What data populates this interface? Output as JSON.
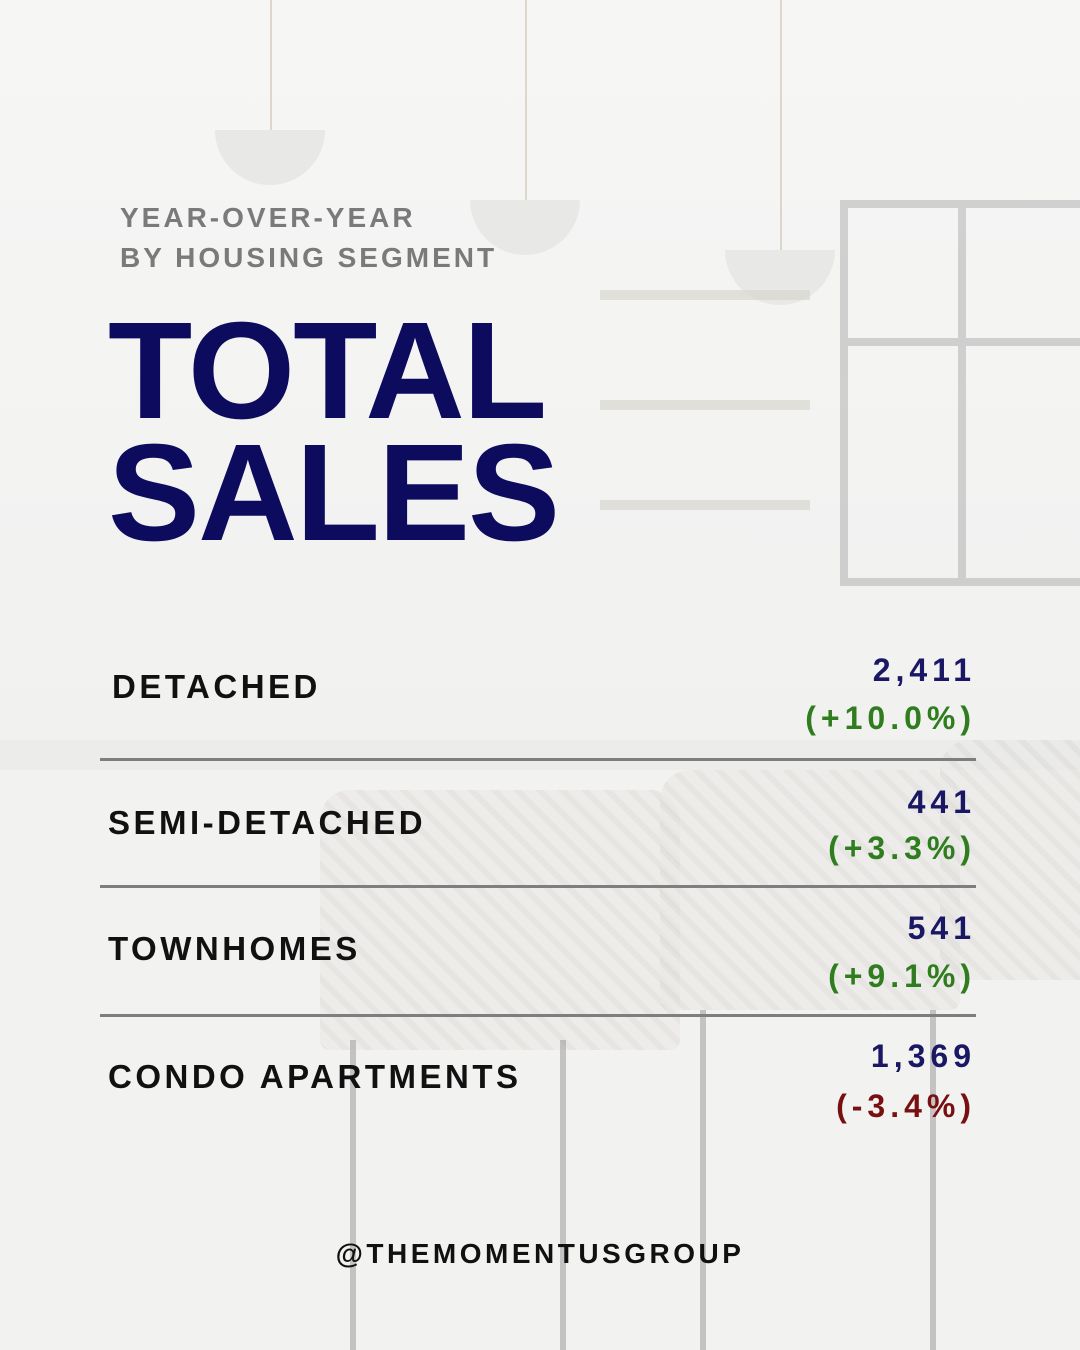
{
  "header": {
    "eyebrow_line1": "YEAR-OVER-YEAR",
    "eyebrow_line2": "BY HOUSING SEGMENT",
    "title_line1": "TOTAL",
    "title_line2": "SALES"
  },
  "segments": [
    {
      "label": "DETACHED",
      "value": "2,411",
      "change": "(+10.0%)",
      "trend": "up"
    },
    {
      "label": "SEMI-DETACHED",
      "value": "441",
      "change": "(+3.3%)",
      "trend": "up"
    },
    {
      "label": "TOWNHOMES",
      "value": "541",
      "change": "(+9.1%)",
      "trend": "up"
    },
    {
      "label": "CONDO APARTMENTS",
      "value": "1,369",
      "change": "(-3.4%)",
      "trend": "down"
    }
  ],
  "footer": {
    "handle": "@THEMOMENTUSGROUP"
  },
  "colors": {
    "title": "#0d0b5e",
    "value": "#1a1764",
    "positive": "#2f7d1e",
    "negative": "#7a0f12"
  },
  "background": "kitchen-photo"
}
